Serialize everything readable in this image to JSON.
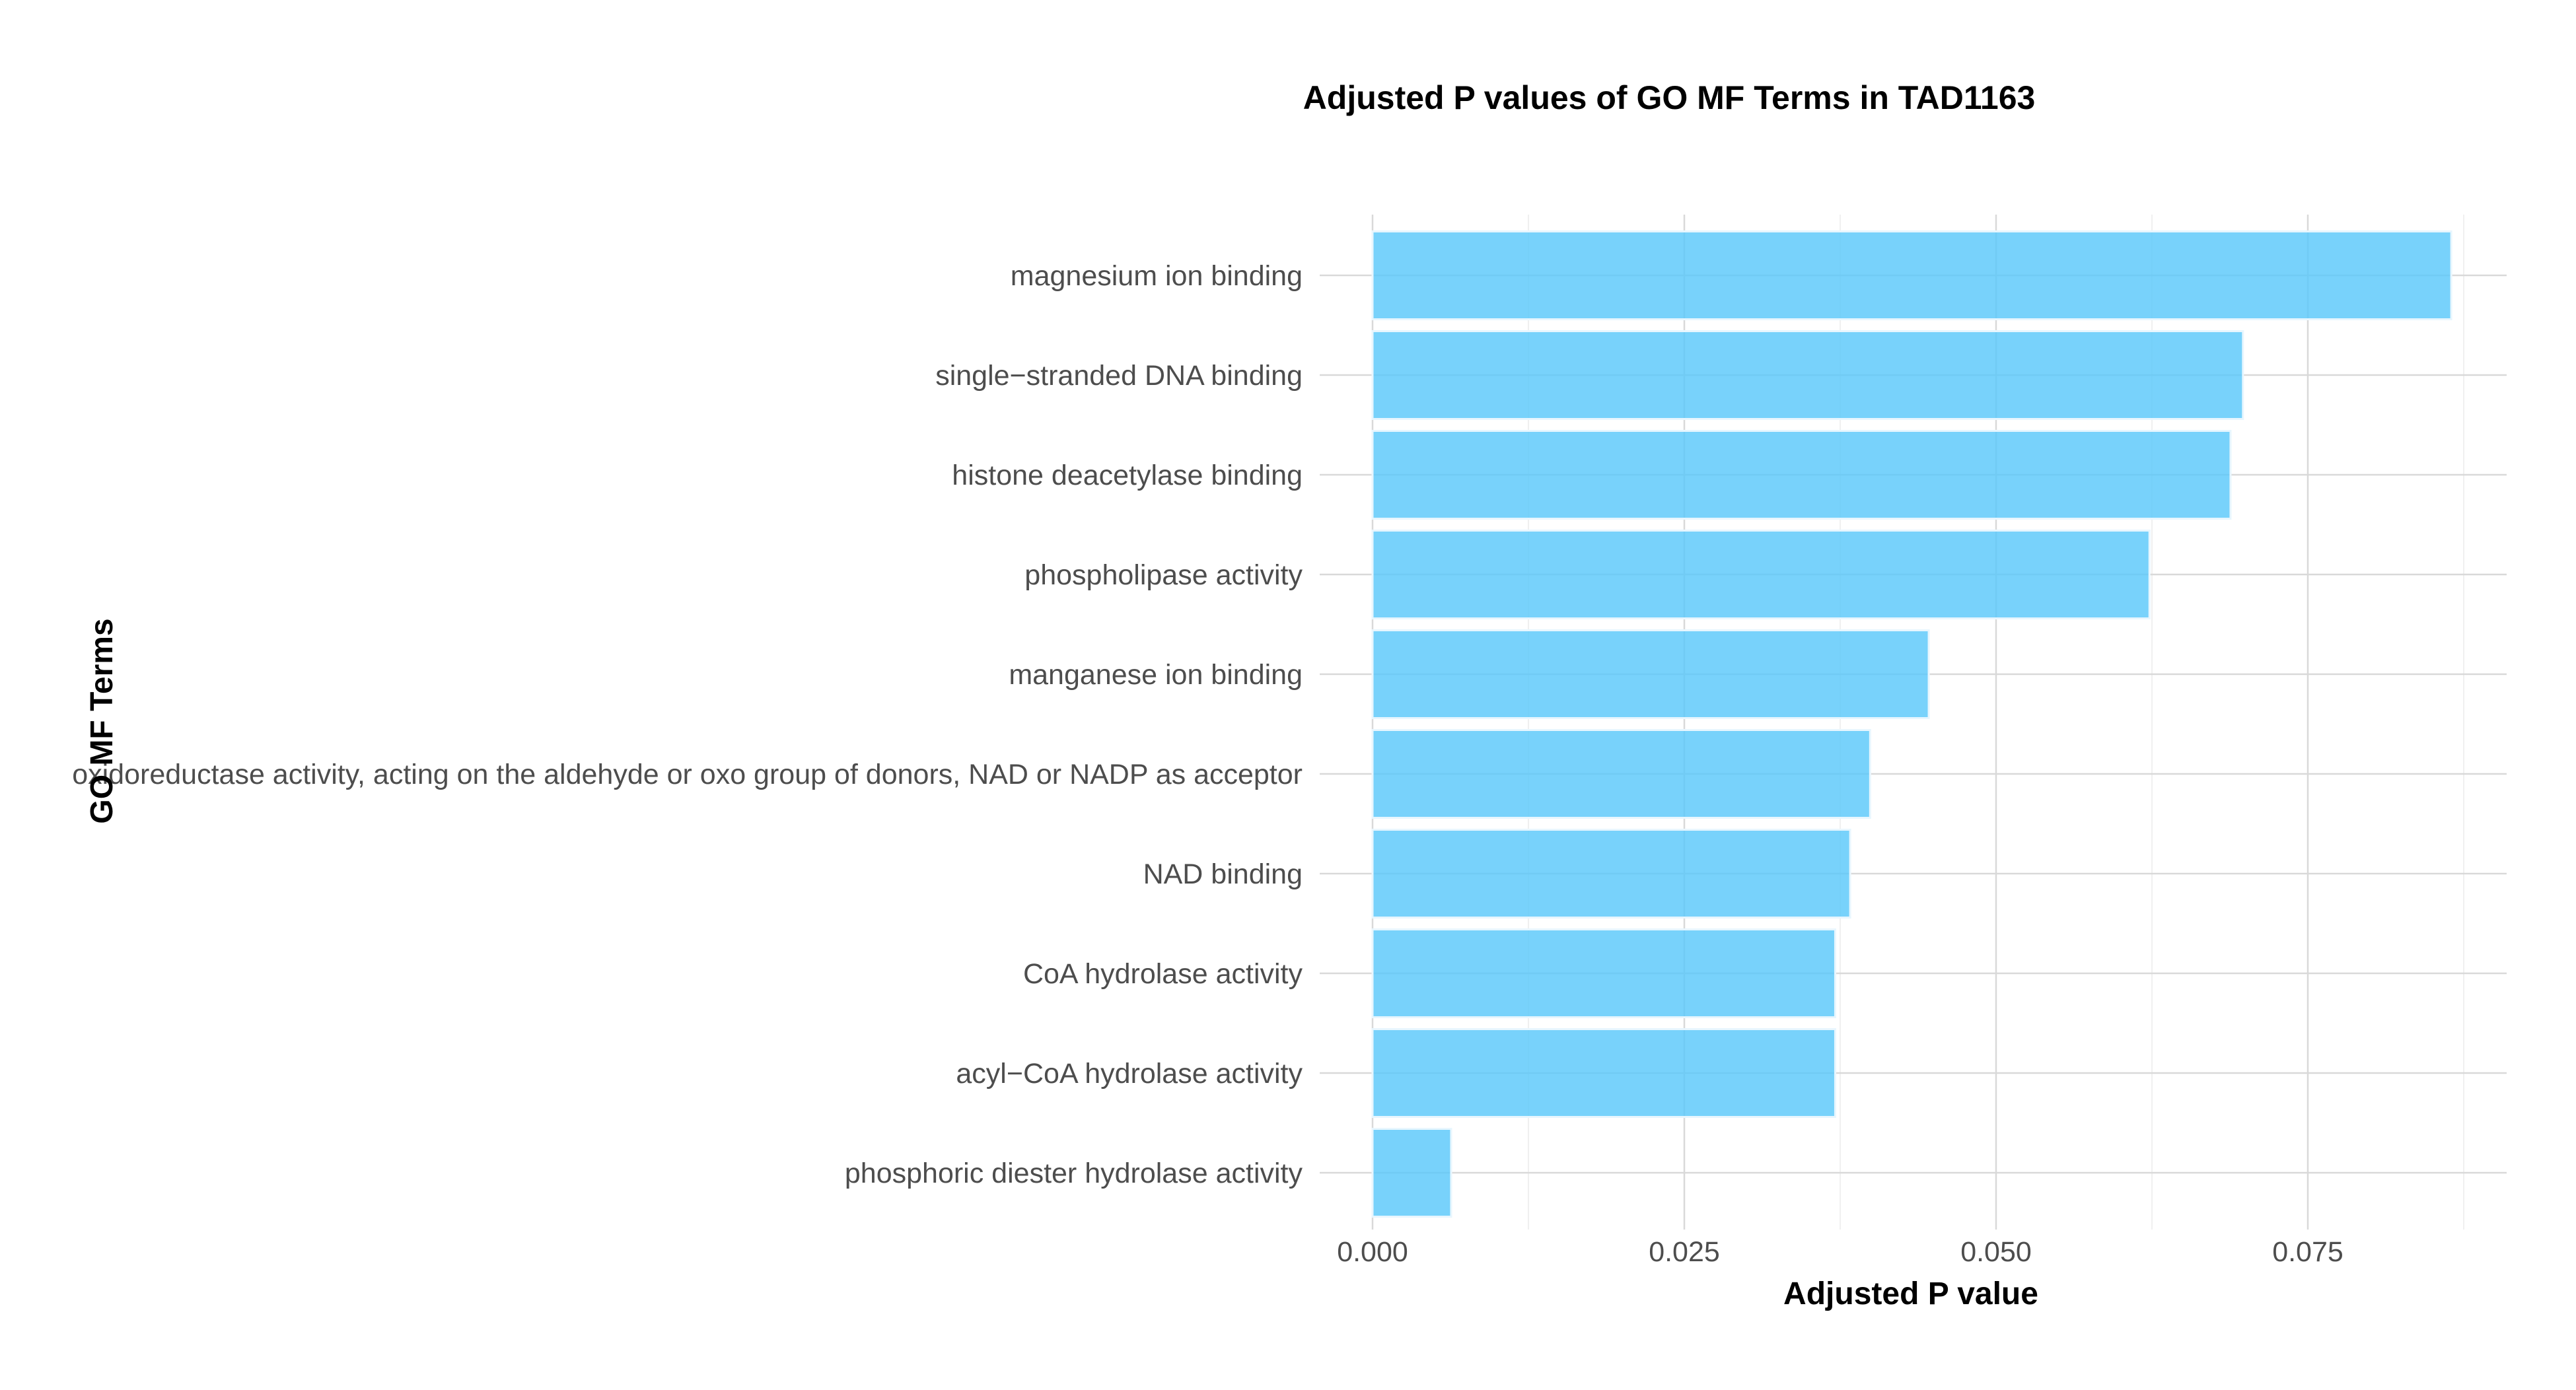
{
  "chart_data": {
    "type": "bar",
    "orientation": "horizontal",
    "title": "Adjusted P values of GO MF Terms in TAD1163",
    "xlabel": "Adjusted P value",
    "ylabel": "GO MF Terms",
    "categories": [
      "magnesium ion binding",
      "single−stranded DNA binding",
      "histone deacetylase binding",
      "phospholipase activity",
      "manganese ion binding",
      "oxidoreductase activity, acting on the aldehyde or oxo group of donors, NAD or NADP as acceptor",
      "NAD binding",
      "CoA hydrolase activity",
      "acyl−CoA hydrolase activity",
      "phosphoric diester hydrolase activity"
    ],
    "values": [
      0.0865,
      0.0698,
      0.0688,
      0.0623,
      0.0446,
      0.0399,
      0.0383,
      0.0371,
      0.0371,
      0.0063
    ],
    "xlim": [
      0,
      0.0915
    ],
    "xticks": [
      0,
      0.025,
      0.05,
      0.075
    ],
    "xtick_labels": [
      "0.000",
      "0.025",
      "0.050",
      "0.075"
    ],
    "bar_color": "#5ac8fa",
    "grid": true,
    "legend": "none"
  }
}
